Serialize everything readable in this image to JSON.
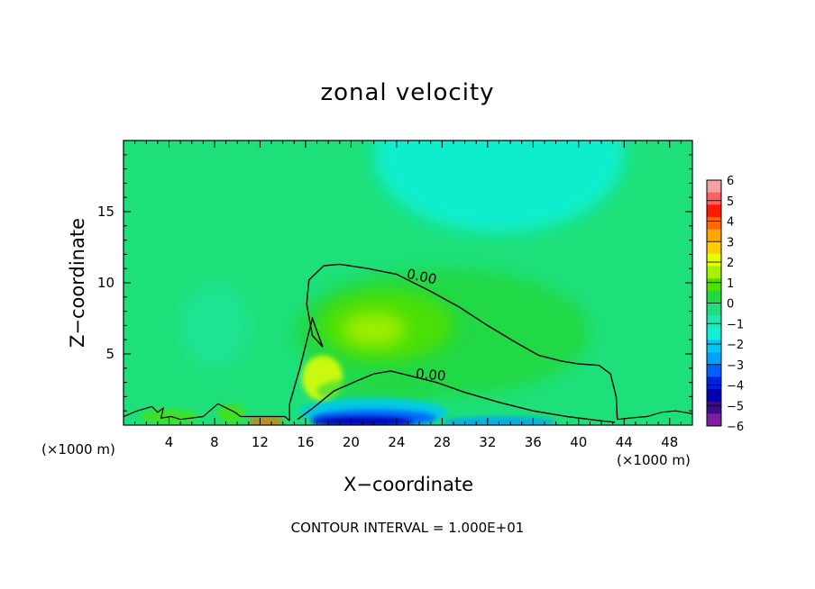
{
  "chart_data": {
    "type": "heatmap",
    "title": "zonal velocity",
    "xlabel": "X−coordinate",
    "ylabel": "Z−coordinate",
    "x_unit_left": "(×1000 m)",
    "x_unit_right": "(×1000 m)",
    "footer": "CONTOUR INTERVAL = 1.000E+01",
    "xlim": [
      0,
      50
    ],
    "ylim": [
      0,
      20
    ],
    "x_ticks": [
      4,
      8,
      12,
      16,
      20,
      24,
      28,
      32,
      36,
      40,
      44,
      48
    ],
    "y_ticks": [
      5,
      10,
      15
    ],
    "colorbar": {
      "levels": [
        "6",
        "5",
        "4",
        "3",
        "2",
        "1",
        "0",
        "−1",
        "−2",
        "−3",
        "−4",
        "−5",
        "−6"
      ],
      "colors": [
        "#f5a0a0",
        "#ff6060",
        "#ff1a00",
        "#ff6a00",
        "#ffa500",
        "#ffcc00",
        "#e6ff00",
        "#a6f000",
        "#50e000",
        "#20d840",
        "#1ee07a",
        "#1ee8b0",
        "#10f0d8",
        "#00c8f0",
        "#00a0ff",
        "#0060ff",
        "#0020e0",
        "#0000b0",
        "#3a0a90",
        "#7b1fa0"
      ]
    },
    "contours": [
      {
        "label": "0.00",
        "x": [
          14.6,
          14.6,
          15.5,
          16.6,
          17.5,
          16.6,
          16.1,
          16.3,
          17.6,
          19.0,
          21.5,
          24.0,
          25.5,
          27.0,
          29.5,
          32.0,
          34.5,
          36.5,
          38.5,
          40.0,
          41.8,
          42.8,
          43.3,
          43.4
        ],
        "y": [
          0.3,
          1.5,
          4.0,
          7.5,
          5.5,
          6.3,
          8.5,
          10.2,
          11.2,
          11.3,
          11.0,
          10.6,
          10.0,
          9.4,
          8.3,
          7.0,
          5.8,
          4.9,
          4.5,
          4.3,
          4.2,
          3.6,
          2.0,
          0.4
        ]
      },
      {
        "label": "0.00",
        "x": [
          15.3,
          16.5,
          18.5,
          20.5,
          22.0,
          23.5,
          25.5,
          27.5,
          30.0,
          33.0,
          36.0,
          39.0,
          42.0,
          43.2
        ],
        "y": [
          0.4,
          1.1,
          2.4,
          3.1,
          3.6,
          3.8,
          3.4,
          3.0,
          2.3,
          1.6,
          1.0,
          0.6,
          0.3,
          0.2
        ]
      }
    ],
    "color_field": [
      {
        "name": "outer background",
        "value": -0.3
      },
      {
        "name": "upper band x 23-42 z 14-20",
        "value": -1.4
      },
      {
        "name": "jet core x 20-24 z 6-7",
        "value": 1.5
      },
      {
        "name": "jet left x 17-18 z 3",
        "value": 2.5
      },
      {
        "name": "surface minimum x 17-30 z 0.5",
        "value": -5.0
      },
      {
        "name": "surface maximum x 11-14 z 0.3",
        "value": 4.0
      }
    ]
  }
}
